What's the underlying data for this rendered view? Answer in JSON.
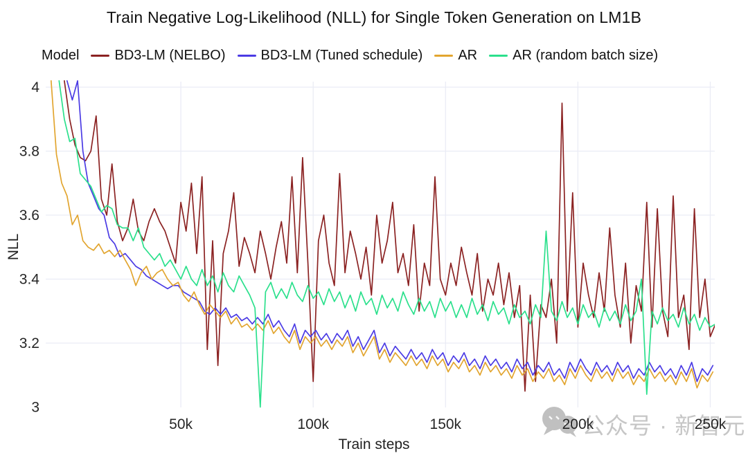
{
  "chart_data": {
    "type": "line",
    "title": "Train Negative Log-Likelihood (NLL) for Single Token Generation on LM1B",
    "xlabel": "Train steps",
    "ylabel": "NLL",
    "legend_title": "Model",
    "legend_position": "top",
    "grid": true,
    "grid_color": "#eaecf5",
    "x_units": "thousands of train steps",
    "xlim": [
      0,
      252
    ],
    "ylim": [
      3,
      4.02
    ],
    "x_ticks": [
      {
        "v": 50,
        "label": "50k"
      },
      {
        "v": 100,
        "label": "100k"
      },
      {
        "v": 150,
        "label": "150k"
      },
      {
        "v": 200,
        "label": "200k"
      },
      {
        "v": 250,
        "label": "250k"
      }
    ],
    "y_ticks": [
      {
        "v": 3,
        "label": "3"
      },
      {
        "v": 3.2,
        "label": "3.2"
      },
      {
        "v": 3.4,
        "label": "3.4"
      },
      {
        "v": 3.6,
        "label": "3.6"
      },
      {
        "v": 3.8,
        "label": "3.8"
      },
      {
        "v": 4,
        "label": "4"
      }
    ],
    "x_grid": [
      50,
      100,
      150,
      200,
      250
    ],
    "y_grid": [
      3.2,
      3.4,
      3.6,
      3.8,
      4
    ],
    "series": [
      {
        "name": "BD3-LM (NELBO)",
        "color": "#8b2222",
        "x0": 6,
        "dx": 2,
        "y": [
          4.02,
          3.9,
          3.82,
          3.78,
          3.77,
          3.8,
          3.91,
          3.65,
          3.6,
          3.76,
          3.58,
          3.52,
          3.56,
          3.65,
          3.55,
          3.52,
          3.58,
          3.62,
          3.58,
          3.55,
          3.5,
          3.45,
          3.64,
          3.55,
          3.7,
          3.48,
          3.72,
          3.18,
          3.52,
          3.13,
          3.48,
          3.55,
          3.67,
          3.44,
          3.53,
          3.48,
          3.42,
          3.55,
          3.48,
          3.4,
          3.5,
          3.58,
          3.45,
          3.72,
          3.42,
          3.78,
          3.45,
          3.08,
          3.52,
          3.6,
          3.45,
          3.38,
          3.73,
          3.42,
          3.55,
          3.48,
          3.4,
          3.5,
          3.35,
          3.6,
          3.45,
          3.52,
          3.64,
          3.42,
          3.48,
          3.38,
          3.57,
          3.3,
          3.45,
          3.38,
          3.72,
          3.4,
          3.35,
          3.45,
          3.38,
          3.5,
          3.42,
          3.35,
          3.48,
          3.3,
          3.4,
          3.35,
          3.45,
          3.32,
          3.42,
          3.28,
          3.38,
          3.05,
          3.35,
          3.08,
          3.32,
          3.28,
          3.4,
          3.2,
          3.95,
          3.3,
          3.67,
          3.25,
          3.45,
          3.35,
          3.28,
          3.42,
          3.3,
          3.56,
          3.35,
          3.25,
          3.45,
          3.2,
          3.38,
          3.3,
          3.64,
          3.25,
          3.62,
          3.3,
          3.22,
          3.66,
          3.28,
          3.35,
          3.18,
          3.62,
          3.28,
          3.4,
          3.22,
          3.26
        ]
      },
      {
        "name": "BD3-LM (Tuned schedule)",
        "color": "#4b3be4",
        "x0": 7,
        "dx": 2,
        "y": [
          4.02,
          3.96,
          4.02,
          3.8,
          3.7,
          3.66,
          3.62,
          3.6,
          3.53,
          3.51,
          3.47,
          3.48,
          3.46,
          3.44,
          3.43,
          3.41,
          3.4,
          3.39,
          3.38,
          3.37,
          3.38,
          3.38,
          3.36,
          3.35,
          3.34,
          3.33,
          3.3,
          3.29,
          3.31,
          3.29,
          3.31,
          3.28,
          3.29,
          3.27,
          3.28,
          3.26,
          3.28,
          3.26,
          3.29,
          3.25,
          3.27,
          3.24,
          3.22,
          3.26,
          3.2,
          3.24,
          3.22,
          3.24,
          3.21,
          3.23,
          3.2,
          3.23,
          3.21,
          3.24,
          3.19,
          3.22,
          3.18,
          3.21,
          3.24,
          3.17,
          3.2,
          3.16,
          3.19,
          3.17,
          3.15,
          3.18,
          3.15,
          3.17,
          3.14,
          3.18,
          3.15,
          3.17,
          3.13,
          3.16,
          3.14,
          3.17,
          3.13,
          3.15,
          3.12,
          3.16,
          3.13,
          3.15,
          3.12,
          3.14,
          3.11,
          3.15,
          3.12,
          3.14,
          3.1,
          3.13,
          3.11,
          3.14,
          3.1,
          3.12,
          3.09,
          3.14,
          3.11,
          3.15,
          3.12,
          3.1,
          3.14,
          3.11,
          3.13,
          3.1,
          3.14,
          3.11,
          3.13,
          3.09,
          3.12,
          3.1,
          3.14,
          3.11,
          3.13,
          3.1,
          3.12,
          3.09,
          3.13,
          3.1,
          3.14,
          3.08,
          3.12,
          3.1,
          3.13
        ]
      },
      {
        "name": "AR",
        "color": "#e2a52f",
        "x0": 1,
        "dx": 2,
        "y": [
          4.02,
          3.79,
          3.7,
          3.66,
          3.57,
          3.6,
          3.52,
          3.5,
          3.49,
          3.51,
          3.48,
          3.49,
          3.47,
          3.49,
          3.46,
          3.43,
          3.38,
          3.42,
          3.44,
          3.4,
          3.42,
          3.43,
          3.4,
          3.38,
          3.39,
          3.35,
          3.33,
          3.36,
          3.32,
          3.29,
          3.32,
          3.3,
          3.28,
          3.3,
          3.26,
          3.28,
          3.25,
          3.26,
          3.24,
          3.26,
          3.24,
          3.27,
          3.23,
          3.25,
          3.22,
          3.2,
          3.24,
          3.18,
          3.22,
          3.2,
          3.22,
          3.19,
          3.21,
          3.18,
          3.21,
          3.19,
          3.22,
          3.17,
          3.2,
          3.16,
          3.19,
          3.22,
          3.15,
          3.18,
          3.14,
          3.17,
          3.15,
          3.13,
          3.16,
          3.13,
          3.15,
          3.12,
          3.16,
          3.13,
          3.15,
          3.11,
          3.14,
          3.12,
          3.15,
          3.11,
          3.13,
          3.1,
          3.14,
          3.11,
          3.13,
          3.1,
          3.12,
          3.09,
          3.13,
          3.1,
          3.12,
          3.08,
          3.11,
          3.09,
          3.12,
          3.08,
          3.1,
          3.07,
          3.12,
          3.09,
          3.13,
          3.1,
          3.08,
          3.12,
          3.09,
          3.11,
          3.08,
          3.12,
          3.09,
          3.11,
          3.07,
          3.1,
          3.08,
          3.12,
          3.09,
          3.11,
          3.08,
          3.1,
          3.07,
          3.11,
          3.08,
          3.12,
          3.06,
          3.1,
          3.08,
          3.11
        ]
      },
      {
        "name": "AR (random batch size)",
        "color": "#2be08c",
        "x0": 4,
        "dx": 2,
        "y": [
          4.02,
          3.9,
          3.83,
          3.84,
          3.73,
          3.71,
          3.69,
          3.65,
          3.61,
          3.63,
          3.62,
          3.57,
          3.56,
          3.56,
          3.52,
          3.56,
          3.5,
          3.48,
          3.46,
          3.48,
          3.44,
          3.46,
          3.43,
          3.4,
          3.44,
          3.4,
          3.38,
          3.43,
          3.38,
          3.41,
          3.36,
          3.42,
          3.38,
          3.36,
          3.41,
          3.38,
          3.35,
          3.31,
          3.0,
          3.36,
          3.39,
          3.34,
          3.37,
          3.34,
          3.39,
          3.35,
          3.33,
          3.38,
          3.34,
          3.36,
          3.32,
          3.37,
          3.33,
          3.36,
          3.31,
          3.35,
          3.3,
          3.36,
          3.32,
          3.34,
          3.29,
          3.35,
          3.31,
          3.34,
          3.3,
          3.36,
          3.32,
          3.29,
          3.34,
          3.3,
          3.33,
          3.28,
          3.34,
          3.3,
          3.33,
          3.28,
          3.32,
          3.28,
          3.34,
          3.29,
          3.32,
          3.27,
          3.33,
          3.29,
          3.31,
          3.26,
          3.32,
          3.28,
          3.3,
          3.26,
          3.32,
          3.28,
          3.55,
          3.3,
          3.27,
          3.33,
          3.28,
          3.31,
          3.26,
          3.32,
          3.28,
          3.3,
          3.25,
          3.31,
          3.27,
          3.3,
          3.26,
          3.32,
          3.27,
          3.3,
          3.4,
          3.04,
          3.3,
          3.26,
          3.31,
          3.27,
          3.29,
          3.25,
          3.31,
          3.26,
          3.29,
          3.24,
          3.28,
          3.25,
          3.26
        ]
      }
    ]
  },
  "watermark": {
    "text": "公众号 · 新智元",
    "icon": "wechat-chat-bubbles-icon",
    "color": "#bdbdbd"
  }
}
